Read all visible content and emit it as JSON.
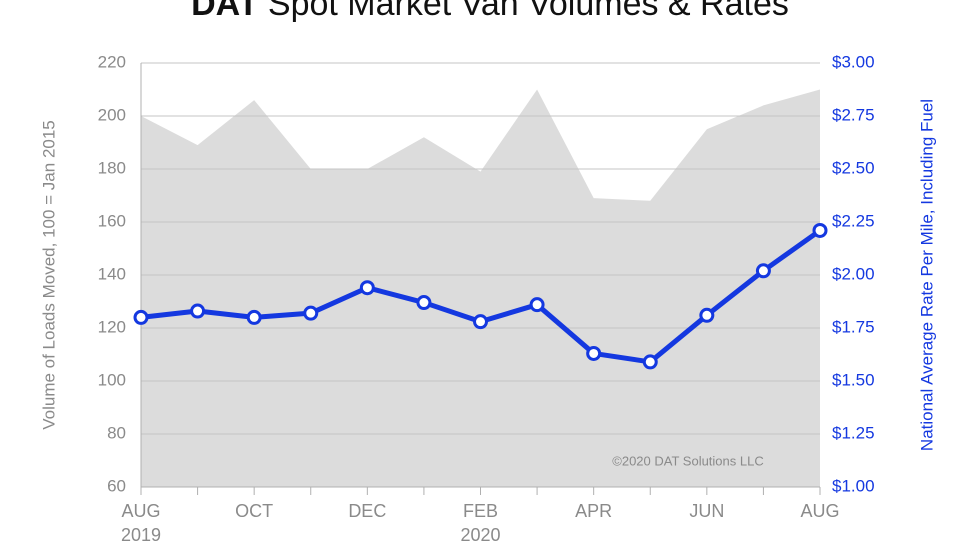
{
  "chart_data": {
    "type": "combo",
    "title_logo": "DAT",
    "title": "Spot Market Van Volumes & Rates",
    "annotation": "©2020 DAT Solutions LLC",
    "ylabel": "Volume of Loads Moved, 100 = Jan 2015",
    "y2label": "National Average Rate Per Mile, Including Fuel",
    "categories": [
      "AUG",
      null,
      "OCT",
      null,
      "DEC",
      null,
      "FEB",
      null,
      "APR",
      null,
      "JUN",
      null,
      "AUG"
    ],
    "years": [
      "2019",
      null,
      null,
      null,
      null,
      null,
      "2020",
      null,
      null,
      null,
      null,
      null,
      null
    ],
    "series": [
      {
        "type": "area",
        "color": "#dcdcdc",
        "values": [
          200,
          189,
          206,
          180,
          180,
          192,
          179,
          210,
          169,
          168,
          195,
          204,
          210
        ]
      },
      {
        "type": "line",
        "axis": "y2",
        "color": "#1438e0",
        "values": [
          1.8,
          1.83,
          1.8,
          1.82,
          1.94,
          1.87,
          1.78,
          1.86,
          1.63,
          1.59,
          1.81,
          2.02,
          2.21
        ]
      }
    ],
    "ylim": [
      60,
      220
    ],
    "yticks": [
      60,
      80,
      100,
      120,
      140,
      160,
      180,
      200,
      220
    ],
    "y2lim": [
      1,
      3
    ],
    "y2ticks": [
      {
        "value": 1,
        "label": "$1.00"
      },
      {
        "value": 1.25,
        "label": "$1.25"
      },
      {
        "value": 1.5,
        "label": "$1.50"
      },
      {
        "value": 1.75,
        "label": "$1.75"
      },
      {
        "value": 2,
        "label": "$2.00"
      },
      {
        "value": 2.25,
        "label": "$2.25"
      },
      {
        "value": 2.5,
        "label": "$2.50"
      },
      {
        "value": 2.75,
        "label": "$2.75"
      },
      {
        "value": 3,
        "label": "$3.00"
      }
    ],
    "grid": true
  }
}
